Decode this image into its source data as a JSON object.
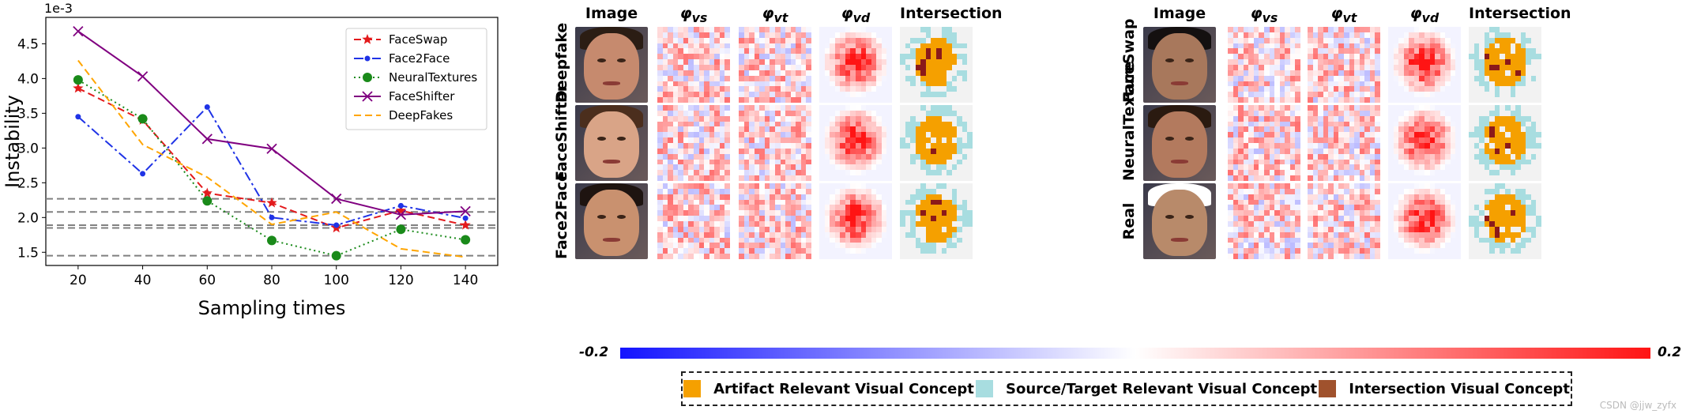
{
  "chart_data": {
    "type": "line",
    "xlabel": "Sampling times",
    "ylabel": "Instability",
    "scale_label": "1e-3",
    "x": [
      20,
      40,
      60,
      80,
      100,
      120,
      140
    ],
    "xticks": [
      "20",
      "40",
      "60",
      "80",
      "100",
      "120",
      "140"
    ],
    "yticks": [
      "1.5",
      "2.0",
      "2.5",
      "3.0",
      "3.5",
      "4.0",
      "4.5"
    ],
    "xlim": [
      10,
      150
    ],
    "ylim": [
      1.31,
      4.88
    ],
    "grid": false,
    "legend_position": "top-right",
    "reference_lines": [
      2.27,
      2.08,
      1.89,
      1.85,
      1.45
    ],
    "series": [
      {
        "name": "FaceSwap",
        "color": "#e31a1c",
        "style": "dashed",
        "marker": "star",
        "values": [
          3.86,
          3.4,
          2.35,
          2.21,
          1.85,
          2.1,
          1.89
        ]
      },
      {
        "name": "Face2Face",
        "color": "#1f33e6",
        "style": "dashdot",
        "marker": "dot",
        "values": [
          3.45,
          2.63,
          3.59,
          2.0,
          1.89,
          2.17,
          1.99
        ]
      },
      {
        "name": "NeuralTextures",
        "color": "#1a8a1a",
        "style": "dotted",
        "marker": "circle",
        "values": [
          3.98,
          3.42,
          2.24,
          1.67,
          1.45,
          1.83,
          1.68
        ]
      },
      {
        "name": "FaceShifter",
        "color": "#800080",
        "style": "solid",
        "marker": "x",
        "values": [
          4.68,
          4.03,
          3.13,
          2.99,
          2.27,
          2.04,
          2.09
        ]
      },
      {
        "name": "DeepFakes",
        "color": "#ffa500",
        "style": "dashed",
        "marker": "none",
        "values": [
          4.26,
          3.05,
          2.58,
          1.9,
          2.08,
          1.55,
          1.43
        ]
      }
    ]
  },
  "grid_figure": {
    "headers_left": [
      "Image",
      "φvs",
      "φvt",
      "φvd",
      "Intersection"
    ],
    "headers_right": [
      "Image",
      "φvs",
      "φvt",
      "φvd",
      "Intersection"
    ],
    "rows_left": [
      "Deepfake",
      "FaceShifter",
      "Face2Face"
    ],
    "rows_right": [
      "FaceSwap",
      "NeuralTexture",
      "Real"
    ],
    "colorbar_min": "-0.2",
    "colorbar_max": "0.2",
    "legend": [
      {
        "label": "Artifact Relevant Visual Concept",
        "color": "#f5a000"
      },
      {
        "label": "Source/Target Relevant Visual Concept",
        "color": "#a8dde0"
      },
      {
        "label": "Intersection Visual Concept",
        "color": "#a0522d"
      }
    ]
  },
  "watermark": "CSDN @jjw_zyfx"
}
